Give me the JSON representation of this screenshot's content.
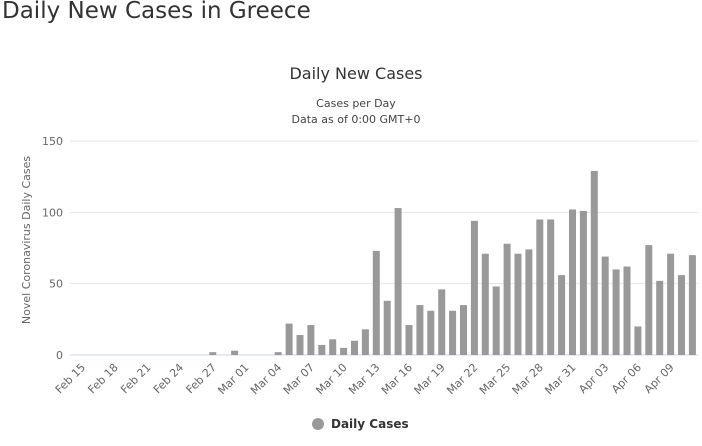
{
  "page": {
    "title": "Daily New Cases in Greece"
  },
  "chart_data": {
    "type": "bar",
    "title": "Daily New Cases",
    "subtitle": [
      "Cases per Day",
      "Data as of 0:00 GMT+0"
    ],
    "ylabel": "Novel Coronavirus Daily Cases",
    "xlabel": "",
    "ylim": [
      0,
      150
    ],
    "yticks": [
      0,
      50,
      100,
      150
    ],
    "grid": true,
    "legend": "bottom",
    "series": [
      {
        "name": "Daily Cases",
        "color": "#999999"
      }
    ],
    "categories": [
      "Feb 15",
      "Feb 16",
      "Feb 17",
      "Feb 18",
      "Feb 19",
      "Feb 20",
      "Feb 21",
      "Feb 22",
      "Feb 23",
      "Feb 24",
      "Feb 25",
      "Feb 26",
      "Feb 27",
      "Feb 28",
      "Feb 29",
      "Mar 01",
      "Mar 02",
      "Mar 03",
      "Mar 04",
      "Mar 05",
      "Mar 06",
      "Mar 07",
      "Mar 08",
      "Mar 09",
      "Mar 10",
      "Mar 11",
      "Mar 12",
      "Mar 13",
      "Mar 14",
      "Mar 15",
      "Mar 16",
      "Mar 17",
      "Mar 18",
      "Mar 19",
      "Mar 20",
      "Mar 21",
      "Mar 22",
      "Mar 23",
      "Mar 24",
      "Mar 25",
      "Mar 26",
      "Mar 27",
      "Mar 28",
      "Mar 29",
      "Mar 30",
      "Mar 31",
      "Apr 01",
      "Apr 02",
      "Apr 03",
      "Apr 04",
      "Apr 05",
      "Apr 06",
      "Apr 07",
      "Apr 08",
      "Apr 09",
      "Apr 10",
      "Apr 11"
    ],
    "xticks": [
      "Feb 15",
      "Feb 18",
      "Feb 21",
      "Feb 24",
      "Feb 27",
      "Mar 01",
      "Mar 04",
      "Mar 07",
      "Mar 10",
      "Mar 13",
      "Mar 16",
      "Mar 19",
      "Mar 22",
      "Mar 25",
      "Mar 28",
      "Mar 31",
      "Apr 03",
      "Apr 06",
      "Apr 09"
    ],
    "values": [
      0,
      0,
      0,
      0,
      0,
      0,
      0,
      0,
      0,
      0,
      0,
      0,
      2,
      0,
      3,
      0,
      0,
      0,
      2,
      22,
      14,
      21,
      7,
      11,
      5,
      10,
      18,
      73,
      38,
      103,
      21,
      35,
      31,
      46,
      31,
      35,
      94,
      71,
      48,
      78,
      71,
      74,
      95,
      95,
      56,
      102,
      101,
      129,
      69,
      60,
      62,
      20,
      77,
      52,
      71,
      56,
      70
    ]
  }
}
